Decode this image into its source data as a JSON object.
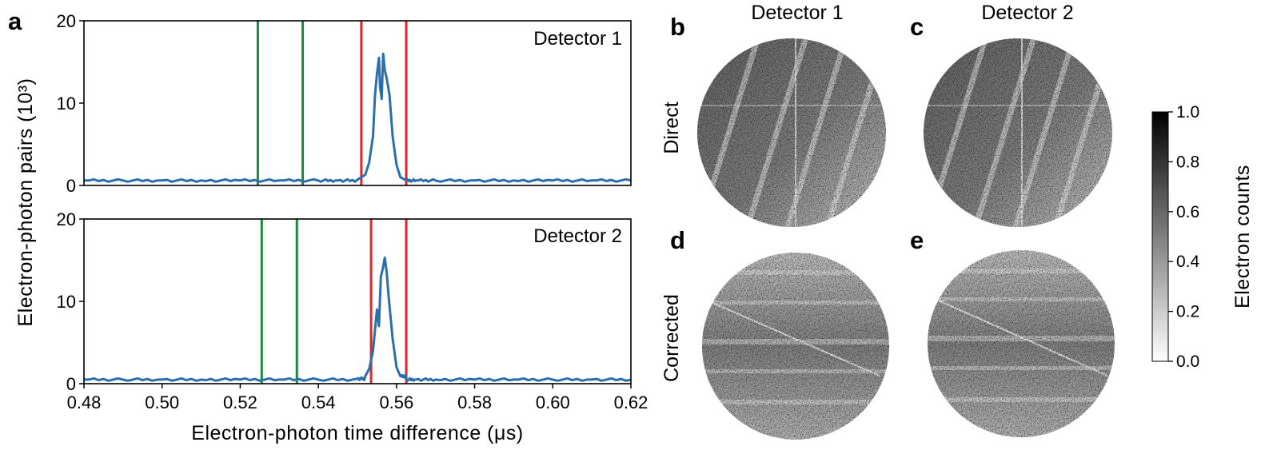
{
  "panel_letters": {
    "a": "a",
    "b": "b",
    "c": "c",
    "d": "d",
    "e": "e"
  },
  "images": {
    "col_titles": [
      "Detector 1",
      "Detector 2"
    ],
    "row_labels": [
      "Direct",
      "Corrected"
    ],
    "colormap": "gray_r",
    "colorbar": {
      "label": "Electron counts",
      "ticks": [
        "0.0",
        "0.2",
        "0.4",
        "0.6",
        "0.8",
        "1.0"
      ],
      "vmin": 0.0,
      "vmax": 1.0
    }
  },
  "chart_data": [
    {
      "type": "line",
      "panel": "a (top)",
      "annotation": "Detector 1",
      "xlim": [
        0.48,
        0.62
      ],
      "ylim": [
        0,
        20
      ],
      "yticks": [
        "0",
        "10",
        "20"
      ],
      "ylabel_shared": "Electron-photon pairs (10³)",
      "series": [
        {
          "color": "#2a6fab",
          "x": [
            0.48,
            0.49,
            0.5,
            0.51,
            0.52,
            0.53,
            0.54,
            0.545,
            0.55,
            0.552,
            0.553,
            0.554,
            0.5545,
            0.555,
            0.5555,
            0.5558,
            0.5562,
            0.5566,
            0.557,
            0.5575,
            0.5582,
            0.559,
            0.56,
            0.561,
            0.5625,
            0.565,
            0.57,
            0.58,
            0.59,
            0.6,
            0.61,
            0.62
          ],
          "y": [
            0.6,
            0.6,
            0.6,
            0.6,
            0.6,
            0.6,
            0.6,
            0.6,
            0.7,
            1.3,
            2.8,
            6.0,
            11.0,
            13.5,
            15.5,
            12.0,
            10.5,
            16.0,
            14.0,
            13.0,
            11.0,
            6.0,
            2.5,
            1.0,
            0.6,
            0.6,
            0.6,
            0.6,
            0.6,
            0.6,
            0.6,
            0.6
          ]
        }
      ],
      "vlines": [
        {
          "x": 0.5245,
          "color": "#1a8a3a"
        },
        {
          "x": 0.536,
          "color": "#1a8a3a"
        },
        {
          "x": 0.551,
          "color": "#e0262b"
        },
        {
          "x": 0.5625,
          "color": "#e0262b"
        }
      ]
    },
    {
      "type": "line",
      "panel": "a (bottom)",
      "annotation": "Detector 2",
      "xlim": [
        0.48,
        0.62
      ],
      "ylim": [
        0,
        20
      ],
      "yticks": [
        "0",
        "10",
        "20"
      ],
      "xticks": [
        "0.48",
        "0.50",
        "0.52",
        "0.54",
        "0.56",
        "0.58",
        "0.60",
        "0.62"
      ],
      "xlabel": "Electron-photon time difference (μs)",
      "series": [
        {
          "color": "#2a6fab",
          "x": [
            0.48,
            0.49,
            0.5,
            0.51,
            0.52,
            0.53,
            0.54,
            0.55,
            0.552,
            0.553,
            0.554,
            0.555,
            0.5555,
            0.556,
            0.5565,
            0.557,
            0.5575,
            0.558,
            0.559,
            0.56,
            0.561,
            0.5625,
            0.565,
            0.57,
            0.58,
            0.59,
            0.6,
            0.61,
            0.62
          ],
          "y": [
            0.5,
            0.5,
            0.5,
            0.5,
            0.5,
            0.5,
            0.5,
            0.6,
            0.9,
            1.8,
            4.0,
            9.0,
            7.0,
            13.0,
            14.0,
            15.3,
            13.5,
            10.5,
            5.5,
            2.0,
            0.9,
            0.5,
            0.5,
            0.5,
            0.5,
            0.5,
            0.5,
            0.5,
            0.5
          ]
        }
      ],
      "vlines": [
        {
          "x": 0.5255,
          "color": "#1a8a3a"
        },
        {
          "x": 0.5345,
          "color": "#1a8a3a"
        },
        {
          "x": 0.5535,
          "color": "#e0262b"
        },
        {
          "x": 0.5625,
          "color": "#e0262b"
        }
      ]
    }
  ]
}
